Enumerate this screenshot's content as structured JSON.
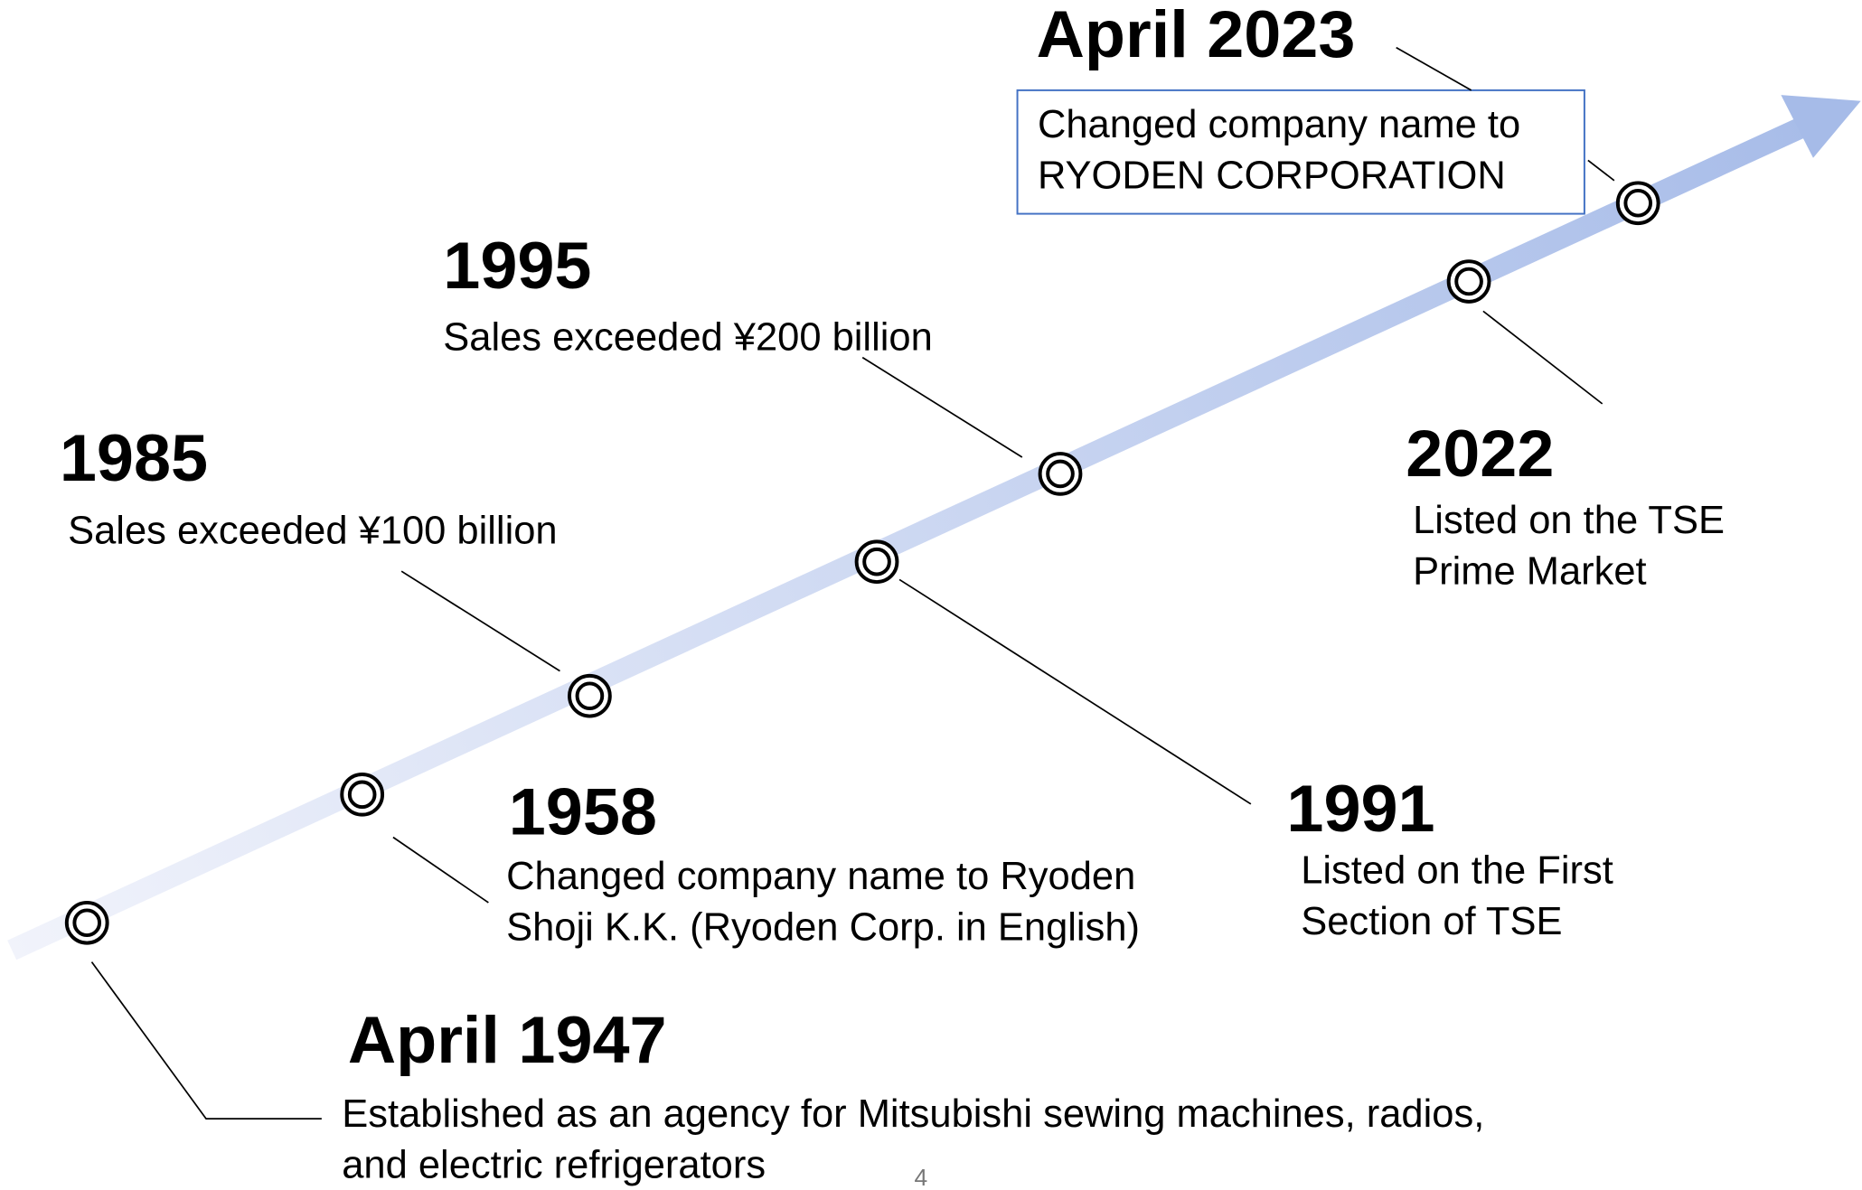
{
  "events": [
    {
      "date": "April 1947",
      "lines": [
        "Established as an agency for Mitsubishi sewing machines, radios,",
        "and electric refrigerators"
      ]
    },
    {
      "date": "1958",
      "lines": [
        "Changed company name to Ryoden",
        "Shoji K.K. (Ryoden Corp. in English)"
      ]
    },
    {
      "date": "1985",
      "lines": [
        "Sales exceeded ¥100 billion"
      ]
    },
    {
      "date": "1991",
      "lines": [
        "Listed on the First",
        "Section of TSE"
      ]
    },
    {
      "date": "1995",
      "lines": [
        "Sales exceeded ¥200 billion"
      ]
    },
    {
      "date": "2022",
      "lines": [
        "Listed on the TSE",
        "Prime Market"
      ]
    },
    {
      "date": "April 2023",
      "lines": [
        "Changed company name to",
        "RYODEN CORPORATION"
      ]
    }
  ],
  "page_number": "4"
}
